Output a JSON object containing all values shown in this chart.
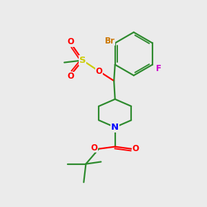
{
  "bg_color": "#ebebeb",
  "bond_color": "#2d8a2d",
  "atom_colors": {
    "Br": "#cc7700",
    "F": "#cc00cc",
    "O": "#ff0000",
    "S": "#cccc00",
    "N": "#0000ff",
    "C": "#2d8a2d"
  },
  "figsize": [
    3.0,
    3.0
  ],
  "dpi": 100
}
